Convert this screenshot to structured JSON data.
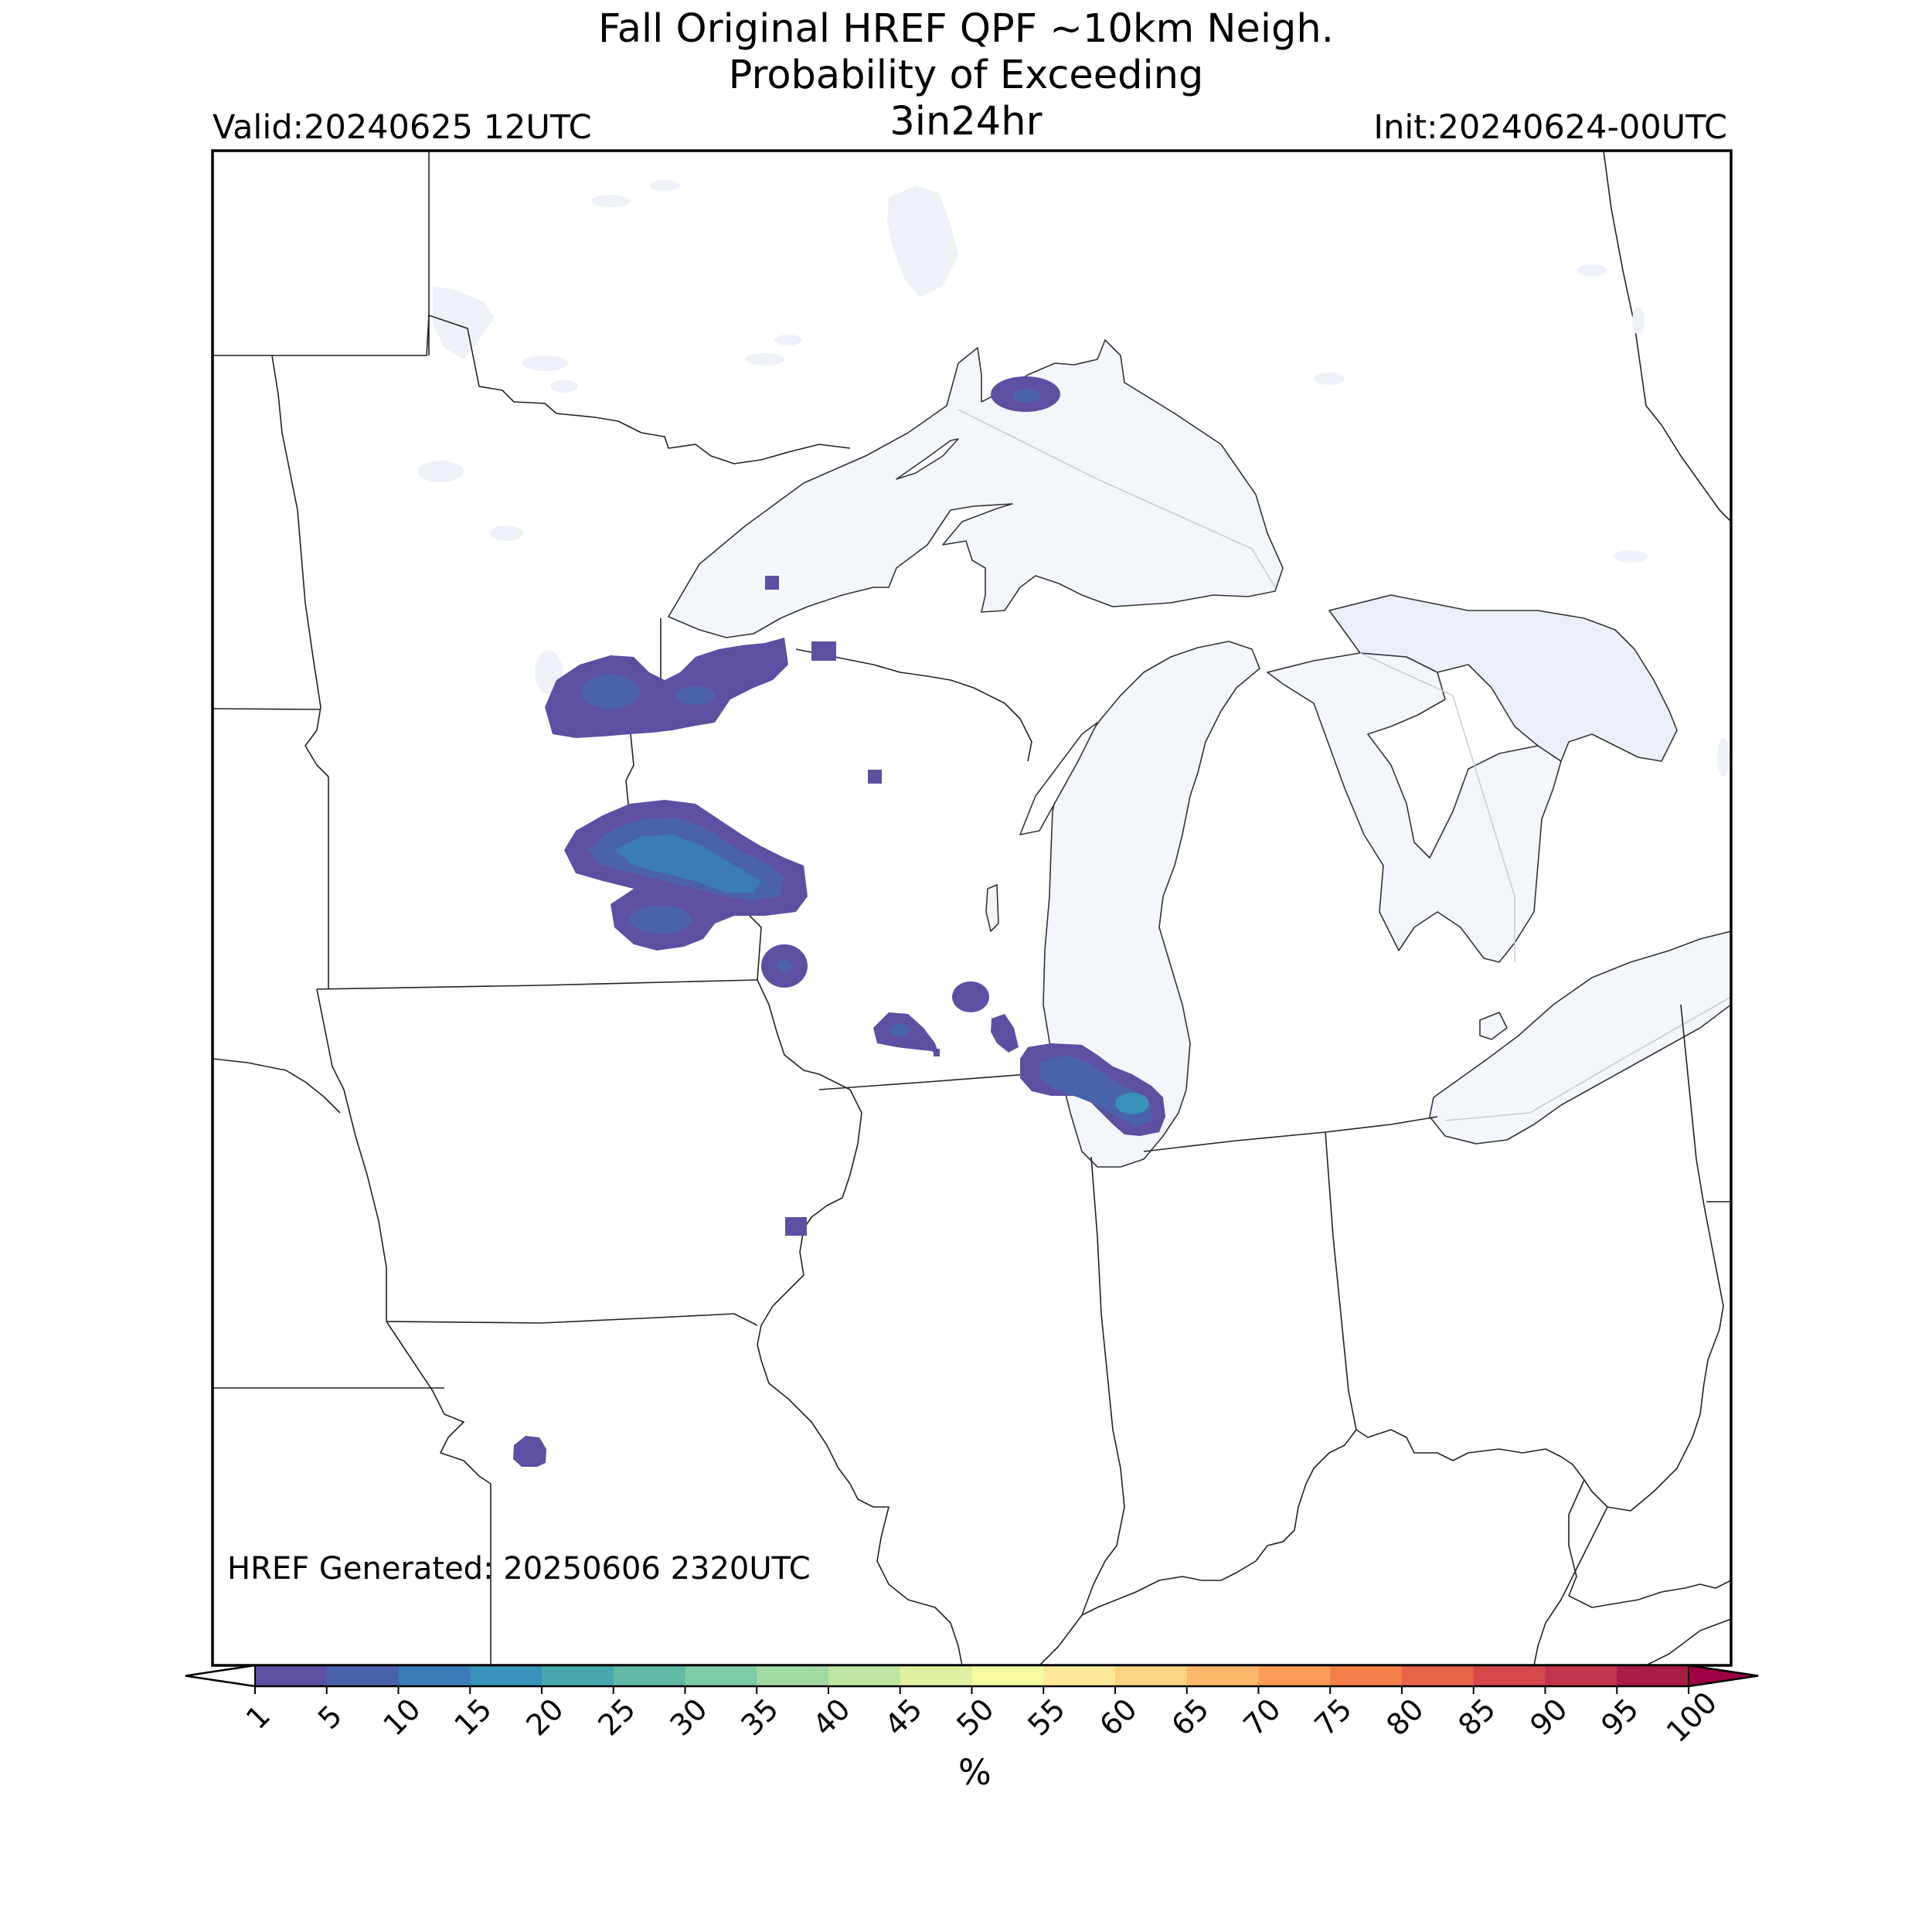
{
  "title": {
    "line1": "Fall Original HREF QPF ~10km Neigh.",
    "line2": "Probability of Exceeding",
    "line3": "3in24hr"
  },
  "valid_label": "Valid:20240625 12UTC",
  "init_label": "Init:20240624-00UTC",
  "generated_label": "HREF Generated: 20250606 2320UTC",
  "colorbar": {
    "unit": "%",
    "ticks": [
      "1",
      "5",
      "10",
      "15",
      "20",
      "25",
      "30",
      "35",
      "40",
      "45",
      "50",
      "55",
      "60",
      "65",
      "70",
      "75",
      "80",
      "85",
      "90",
      "95",
      "100"
    ],
    "colors": [
      "#5e4fa2",
      "#4a62ab",
      "#3b7bb8",
      "#3990b8",
      "#4aa6ad",
      "#61b9a5",
      "#7ecca4",
      "#a0d9a3",
      "#bfe5a0",
      "#dff0a0",
      "#f4fa9f",
      "#fee99a",
      "#fed382",
      "#fdb869",
      "#fb9b59",
      "#f57f4b",
      "#e7634a",
      "#d7484b",
      "#c4344d",
      "#a81c45",
      "#9e0142"
    ],
    "under_color": "#ffffff",
    "over_color": "#9e0142"
  },
  "map": {
    "lake_color": "#f3f6fb",
    "probability_colors": {
      "low": "#5e4fa2",
      "mid": "#4a62ab",
      "high": "#3b7bb8"
    }
  }
}
